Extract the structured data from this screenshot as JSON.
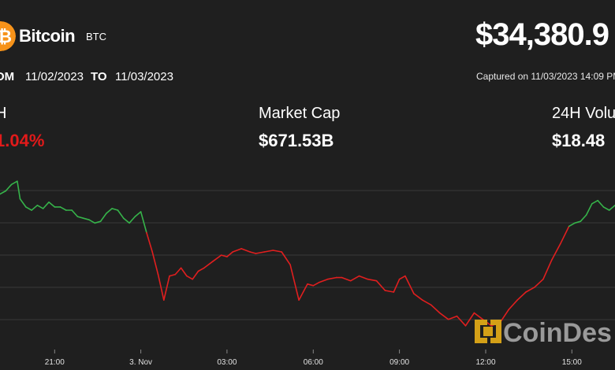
{
  "header": {
    "coin_name": "Bitcoin",
    "ticker": "BTC",
    "price": "$34,380.9",
    "icon": "bitcoin-icon",
    "icon_color": "#f7931a"
  },
  "range": {
    "from_label": "OM",
    "from_date": "11/02/2023",
    "to_label": "TO",
    "to_date": "11/03/2023",
    "captured": "Captured on 11/03/2023 14:09 PM"
  },
  "stats": {
    "change_label": "H",
    "change_value": "1.04%",
    "market_cap_label": "Market Cap",
    "market_cap_value": "$671.53B",
    "volume_label": "24H Volu",
    "volume_value": "$18.48"
  },
  "watermark": {
    "text": "CoinDes",
    "color": "#9a9a9a",
    "logo_color": "#d4a017"
  },
  "chart_data": {
    "type": "line",
    "title": "",
    "xlabel": "",
    "ylabel": "",
    "x_ticks": [
      "21:00",
      "3. Nov",
      "03:00",
      "06:00",
      "09:00",
      "12:00",
      "15:00"
    ],
    "x_tick_hours": [
      21,
      24,
      27,
      30,
      33,
      36,
      39
    ],
    "xlim": [
      19.1,
      40.5
    ],
    "ylim": [
      0,
      1
    ],
    "grid": true,
    "colors": {
      "up": "#36b34a",
      "down": "#e01f1f"
    },
    "series": [
      {
        "x": [
          19.1,
          19.3,
          19.5,
          19.7,
          19.8,
          20.0,
          20.2,
          20.4,
          20.6,
          20.8,
          21.0,
          21.2,
          21.4,
          21.6,
          21.8,
          22.0,
          22.2,
          22.4,
          22.6,
          22.8,
          23.0,
          23.2,
          23.4,
          23.6,
          23.8,
          24.0,
          24.2,
          24.4,
          24.6,
          24.8,
          25.0,
          25.2,
          25.4,
          25.6,
          25.8,
          26.0,
          26.2,
          26.5,
          26.8,
          27.0,
          27.2,
          27.5,
          27.8,
          28.0,
          28.3,
          28.6,
          28.9,
          29.2,
          29.5,
          29.8,
          30.0,
          30.2,
          30.5,
          30.8,
          31.0,
          31.3,
          31.6,
          31.9,
          32.2,
          32.5,
          32.8,
          33.0,
          33.2,
          33.5,
          33.8,
          34.1,
          34.4,
          34.7,
          35.0,
          35.3,
          35.6,
          35.9,
          36.2,
          36.5,
          36.8,
          37.1,
          37.4,
          37.7,
          38.0,
          38.3,
          38.6,
          38.9,
          39.1,
          39.3,
          39.5,
          39.7,
          39.9,
          40.1,
          40.3,
          40.5
        ],
        "y": [
          0.86,
          0.88,
          0.92,
          0.94,
          0.83,
          0.78,
          0.76,
          0.79,
          0.77,
          0.81,
          0.78,
          0.78,
          0.76,
          0.76,
          0.72,
          0.71,
          0.7,
          0.68,
          0.69,
          0.74,
          0.77,
          0.76,
          0.71,
          0.68,
          0.72,
          0.75,
          0.62,
          0.5,
          0.36,
          0.2,
          0.35,
          0.36,
          0.4,
          0.35,
          0.33,
          0.38,
          0.4,
          0.44,
          0.48,
          0.47,
          0.5,
          0.52,
          0.5,
          0.49,
          0.5,
          0.51,
          0.5,
          0.42,
          0.2,
          0.3,
          0.29,
          0.31,
          0.33,
          0.34,
          0.34,
          0.32,
          0.35,
          0.33,
          0.32,
          0.26,
          0.25,
          0.33,
          0.35,
          0.24,
          0.2,
          0.17,
          0.12,
          0.08,
          0.1,
          0.04,
          0.12,
          0.08,
          0.04,
          0.06,
          0.14,
          0.2,
          0.25,
          0.28,
          0.33,
          0.45,
          0.55,
          0.66,
          0.68,
          0.69,
          0.73,
          0.8,
          0.82,
          0.78,
          0.76,
          0.79
        ]
      }
    ]
  }
}
